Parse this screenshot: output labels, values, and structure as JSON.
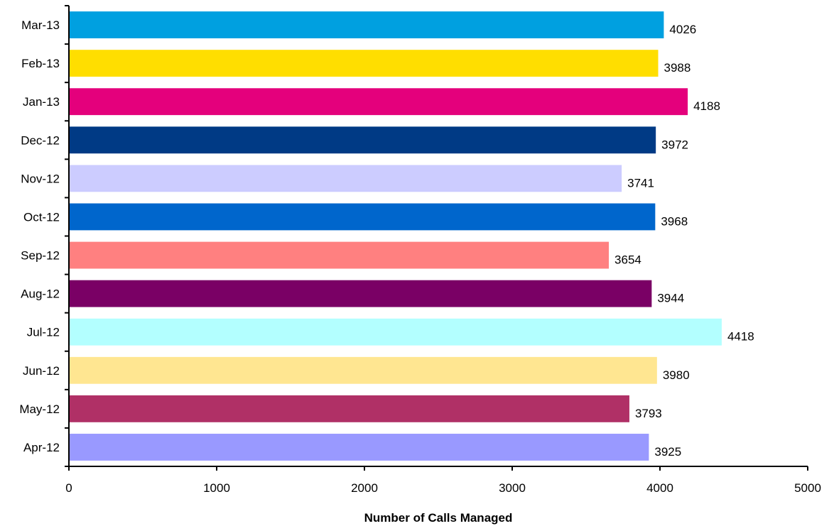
{
  "chart_data": {
    "type": "bar",
    "orientation": "horizontal",
    "title": "",
    "xlabel": "Number of Calls Managed",
    "ylabel": "",
    "xlim": [
      0,
      5000
    ],
    "x_ticks": [
      0,
      1000,
      2000,
      3000,
      4000,
      5000
    ],
    "grid": false,
    "legend": "none",
    "categories": [
      "Apr-12",
      "May-12",
      "Jun-12",
      "Jul-12",
      "Aug-12",
      "Sep-12",
      "Oct-12",
      "Nov-12",
      "Dec-12",
      "Jan-13",
      "Feb-13",
      "Mar-13"
    ],
    "values": [
      3925,
      3793,
      3980,
      4418,
      3944,
      3654,
      3968,
      3741,
      3972,
      4188,
      3988,
      4026
    ],
    "colors": [
      "#9999ff",
      "#b03066",
      "#ffe691",
      "#b3ffff",
      "#7a0065",
      "#ff8080",
      "#0066cc",
      "#ccccff",
      "#003a85",
      "#e4007c",
      "#ffde00",
      "#00a0e0"
    ]
  }
}
